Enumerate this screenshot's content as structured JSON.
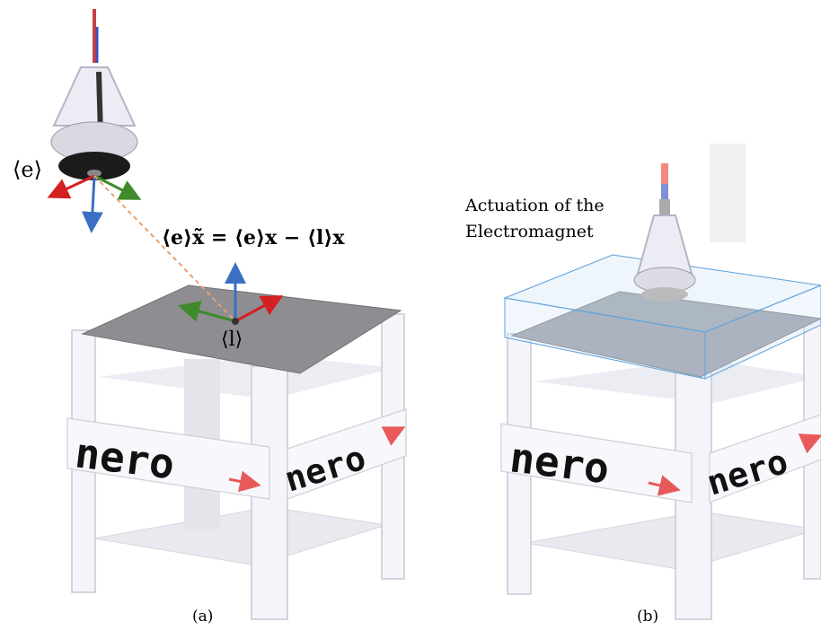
{
  "panels": [
    {
      "label": "(a)",
      "frame_labels": [
        "⟨e⟩",
        "⟨l⟩"
      ],
      "equation": "⟨e⟩x̃ = ⟨e⟩x − ⟨l⟩x"
    },
    {
      "label": "(b)",
      "annotation": [
        "Actuation of the",
        "Electromagnet"
      ]
    }
  ],
  "logo": "nero"
}
